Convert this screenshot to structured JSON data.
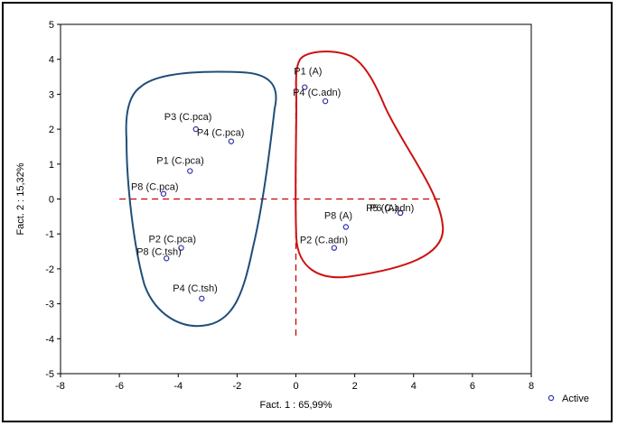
{
  "chart_data": {
    "type": "scatter",
    "title": "",
    "xlabel": "Fact. 1 : 65,99%",
    "ylabel": "Fact. 2 : 15,32%",
    "xlim": [
      -8,
      8
    ],
    "ylim": [
      -5,
      5
    ],
    "xticks": [
      -8,
      -6,
      -4,
      -2,
      0,
      2,
      4,
      6,
      8
    ],
    "yticks": [
      -5,
      -4,
      -3,
      -2,
      -1,
      0,
      1,
      2,
      3,
      4,
      5
    ],
    "grid": false,
    "legend": {
      "position": "right",
      "entries": [
        "Active"
      ]
    },
    "series": [
      {
        "name": "Active",
        "color": "#3333aa",
        "points": [
          {
            "label": "P3 (C.pca)",
            "x": -3.4,
            "y": 2.0
          },
          {
            "label": "P4 (C.pca)",
            "x": -2.2,
            "y": 1.65
          },
          {
            "label": "P1 (C.pca)",
            "x": -3.6,
            "y": 0.8
          },
          {
            "label": "P8 (C.pca)",
            "x": -4.5,
            "y": 0.15
          },
          {
            "label": "P2 (C.pca)",
            "x": -3.9,
            "y": -1.4
          },
          {
            "label": "P8 (C.tsh)",
            "x": -4.4,
            "y": -1.7
          },
          {
            "label": "P4 (C.tsh)",
            "x": -3.2,
            "y": -2.85
          },
          {
            "label": "P1 (A)",
            "x": 0.3,
            "y": 3.2
          },
          {
            "label": "P4 (C.adn)",
            "x": 1.0,
            "y": 2.8
          },
          {
            "label": "P8 (A)",
            "x": 1.7,
            "y": -0.8
          },
          {
            "label": "P2 (C.adn)",
            "x": 1.3,
            "y": -1.4
          },
          {
            "label": "P5 (C.adn)",
            "x": 3.55,
            "y": -0.4
          },
          {
            "label": "P6 (A)",
            "x": 3.55,
            "y": -0.4
          }
        ]
      }
    ],
    "reference_lines": {
      "x": 0,
      "y": 0,
      "color": "#cc0000",
      "style": "dashed"
    },
    "groups": [
      {
        "id": "left-cluster",
        "color": "#1f4e79"
      },
      {
        "id": "right-cluster",
        "color": "#cc1111"
      }
    ]
  }
}
